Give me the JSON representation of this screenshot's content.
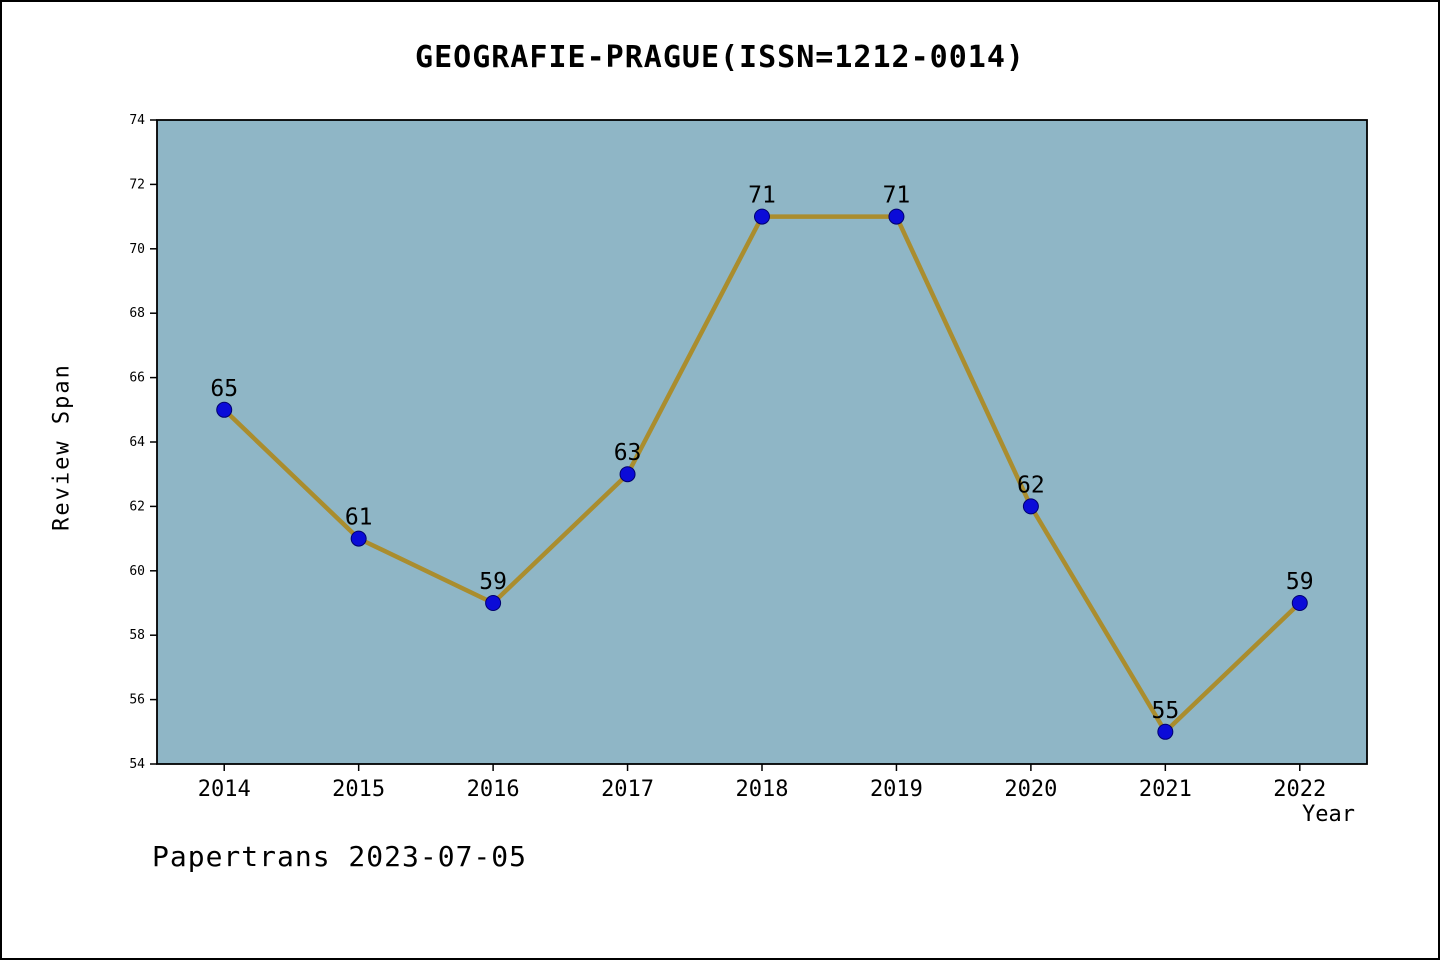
{
  "footer": "Papertrans 2023-07-05",
  "chart_data": {
    "type": "line",
    "title": "GEOGRAFIE-PRAGUE(ISSN=1212-0014)",
    "xlabel": "Year",
    "ylabel": "Review Span",
    "categories": [
      2014,
      2015,
      2016,
      2017,
      2018,
      2019,
      2020,
      2021,
      2022
    ],
    "values": [
      65,
      61,
      59,
      63,
      71,
      71,
      62,
      55,
      59
    ],
    "ylim": [
      54,
      74
    ],
    "y_ticks": [
      54,
      56,
      58,
      60,
      62,
      64,
      66,
      68,
      70,
      72,
      74
    ],
    "grid": false,
    "legend": false,
    "data_labels": true,
    "plot_bg_color": "#8fb6c6",
    "line_color": "#aa8d2e",
    "marker_color": "#0b0bd8",
    "marker_edge_color": "#00006e",
    "axis_color": "#000000",
    "text_color": "#000000"
  }
}
